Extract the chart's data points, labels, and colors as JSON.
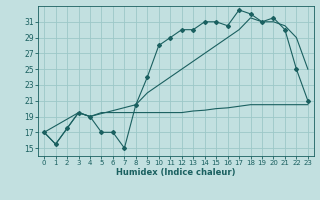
{
  "xlabel": "Humidex (Indice chaleur)",
  "bg_color": "#c2e0e0",
  "grid_color": "#9cc8c8",
  "line_color": "#1a6060",
  "xlim": [
    -0.5,
    23.5
  ],
  "ylim": [
    14.0,
    33.0
  ],
  "yticks": [
    15,
    17,
    19,
    21,
    23,
    25,
    27,
    29,
    31
  ],
  "xticks": [
    0,
    1,
    2,
    3,
    4,
    5,
    6,
    7,
    8,
    9,
    10,
    11,
    12,
    13,
    14,
    15,
    16,
    17,
    18,
    19,
    20,
    21,
    22,
    23
  ],
  "series1_x": [
    0,
    1,
    2,
    3,
    4,
    5,
    6,
    7,
    8,
    9,
    10,
    11,
    12,
    13,
    14,
    15,
    16,
    17,
    18,
    19,
    20,
    21,
    22,
    23
  ],
  "series1_y": [
    17,
    15.5,
    17.5,
    19.5,
    19,
    17,
    17,
    15,
    20.5,
    24,
    28,
    29,
    30,
    30,
    31,
    31,
    30.5,
    32.5,
    32,
    31,
    31.5,
    30,
    25,
    21
  ],
  "series2_x": [
    0,
    3,
    4,
    8,
    9,
    10,
    17,
    18,
    19,
    20,
    21,
    22,
    23
  ],
  "series2_y": [
    17,
    19.5,
    19,
    20.5,
    22,
    23,
    30,
    31.5,
    31,
    31,
    30.5,
    29,
    25
  ],
  "series3_x": [
    0,
    1,
    2,
    3,
    4,
    5,
    6,
    7,
    8,
    9,
    10,
    11,
    12,
    13,
    14,
    15,
    16,
    17,
    18,
    19,
    20,
    21,
    22,
    23
  ],
  "series3_y": [
    17,
    15.5,
    17.5,
    19.5,
    19,
    19.5,
    19.5,
    19.5,
    19.5,
    19.5,
    19.5,
    19.5,
    19.5,
    19.7,
    19.8,
    20,
    20.1,
    20.3,
    20.5,
    20.5,
    20.5,
    20.5,
    20.5,
    20.5
  ],
  "tick_fontsize": 5.0,
  "xlabel_fontsize": 6.0
}
